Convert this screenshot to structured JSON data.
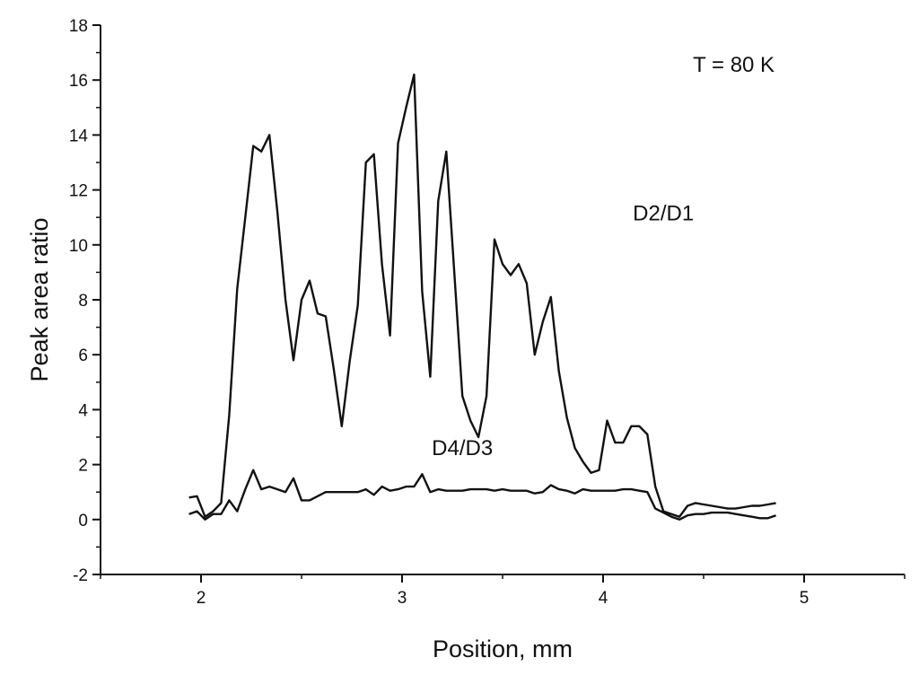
{
  "chart_data": {
    "type": "line",
    "title": "",
    "xlabel": "Position, mm",
    "ylabel": "Peak area ratio",
    "xlim": [
      1.5,
      5.5
    ],
    "ylim": [
      -2,
      18
    ],
    "x_ticks": [
      2,
      3,
      4,
      5
    ],
    "x_tick_labels": [
      "2",
      "3",
      "4",
      "5"
    ],
    "y_ticks": [
      -2,
      0,
      2,
      4,
      6,
      8,
      10,
      12,
      14,
      16,
      18
    ],
    "y_tick_labels": [
      "-2",
      "0",
      "2",
      "4",
      "6",
      "8",
      "10",
      "12",
      "14",
      "16",
      "18"
    ],
    "grid": false,
    "line_color": "#111111",
    "annotations": [
      {
        "text": "T = 80 K",
        "x": 4.65,
        "y": 16.3
      },
      {
        "text": "D2/D1",
        "x": 4.3,
        "y": 10.9
      },
      {
        "text": "D4/D3",
        "x": 3.3,
        "y": 2.35
      }
    ],
    "series": [
      {
        "name": "D2/D1",
        "x": [
          1.94,
          1.98,
          2.02,
          2.06,
          2.1,
          2.14,
          2.18,
          2.22,
          2.26,
          2.3,
          2.34,
          2.38,
          2.42,
          2.46,
          2.5,
          2.54,
          2.58,
          2.62,
          2.66,
          2.7,
          2.74,
          2.78,
          2.82,
          2.86,
          2.9,
          2.94,
          2.98,
          3.02,
          3.06,
          3.1,
          3.14,
          3.18,
          3.22,
          3.26,
          3.3,
          3.34,
          3.38,
          3.42,
          3.46,
          3.5,
          3.54,
          3.58,
          3.62,
          3.66,
          3.7,
          3.74,
          3.78,
          3.82,
          3.86,
          3.9,
          3.94,
          3.98,
          4.02,
          4.06,
          4.1,
          4.14,
          4.18,
          4.22,
          4.26,
          4.3,
          4.34,
          4.38,
          4.42,
          4.46,
          4.5,
          4.54,
          4.58,
          4.62,
          4.66,
          4.7,
          4.74,
          4.78,
          4.82,
          4.86
        ],
        "values": [
          0.8,
          0.85,
          0.1,
          0.3,
          0.6,
          3.8,
          8.4,
          11.0,
          13.6,
          13.4,
          14.0,
          11.2,
          8.0,
          5.8,
          8.0,
          8.7,
          7.5,
          7.4,
          5.5,
          3.4,
          5.8,
          7.8,
          13.0,
          13.3,
          9.3,
          6.7,
          13.7,
          15.0,
          16.2,
          8.3,
          5.2,
          11.6,
          13.4,
          9.0,
          4.5,
          3.6,
          3.0,
          4.5,
          10.2,
          9.3,
          8.9,
          9.3,
          8.6,
          6.0,
          7.2,
          8.1,
          5.4,
          3.7,
          2.6,
          2.1,
          1.7,
          1.8,
          3.6,
          2.8,
          2.8,
          3.4,
          3.4,
          3.1,
          1.2,
          0.3,
          0.2,
          0.1,
          0.5,
          0.6,
          0.55,
          0.5,
          0.45,
          0.4,
          0.4,
          0.45,
          0.5,
          0.5,
          0.55,
          0.6
        ]
      },
      {
        "name": "D4/D3",
        "x": [
          1.94,
          1.98,
          2.02,
          2.06,
          2.1,
          2.14,
          2.18,
          2.22,
          2.26,
          2.3,
          2.34,
          2.38,
          2.42,
          2.46,
          2.5,
          2.54,
          2.58,
          2.62,
          2.66,
          2.7,
          2.74,
          2.78,
          2.82,
          2.86,
          2.9,
          2.94,
          2.98,
          3.02,
          3.06,
          3.1,
          3.14,
          3.18,
          3.22,
          3.26,
          3.3,
          3.34,
          3.38,
          3.42,
          3.46,
          3.5,
          3.54,
          3.58,
          3.62,
          3.66,
          3.7,
          3.74,
          3.78,
          3.82,
          3.86,
          3.9,
          3.94,
          3.98,
          4.02,
          4.06,
          4.1,
          4.14,
          4.18,
          4.22,
          4.26,
          4.3,
          4.34,
          4.38,
          4.42,
          4.46,
          4.5,
          4.54,
          4.58,
          4.62,
          4.66,
          4.7,
          4.74,
          4.78,
          4.82,
          4.86
        ],
        "values": [
          0.2,
          0.3,
          0.0,
          0.2,
          0.2,
          0.7,
          0.3,
          1.1,
          1.8,
          1.1,
          1.2,
          1.1,
          1.0,
          1.5,
          0.7,
          0.7,
          0.85,
          1.0,
          1.0,
          1.0,
          1.0,
          1.0,
          1.1,
          0.9,
          1.2,
          1.05,
          1.1,
          1.2,
          1.2,
          1.65,
          1.0,
          1.1,
          1.05,
          1.05,
          1.05,
          1.1,
          1.1,
          1.1,
          1.05,
          1.1,
          1.05,
          1.05,
          1.05,
          0.95,
          1.0,
          1.25,
          1.1,
          1.05,
          0.95,
          1.1,
          1.05,
          1.05,
          1.05,
          1.05,
          1.1,
          1.1,
          1.05,
          1.0,
          0.4,
          0.25,
          0.1,
          0.0,
          0.15,
          0.2,
          0.2,
          0.25,
          0.25,
          0.25,
          0.2,
          0.15,
          0.1,
          0.05,
          0.05,
          0.15
        ]
      }
    ]
  }
}
